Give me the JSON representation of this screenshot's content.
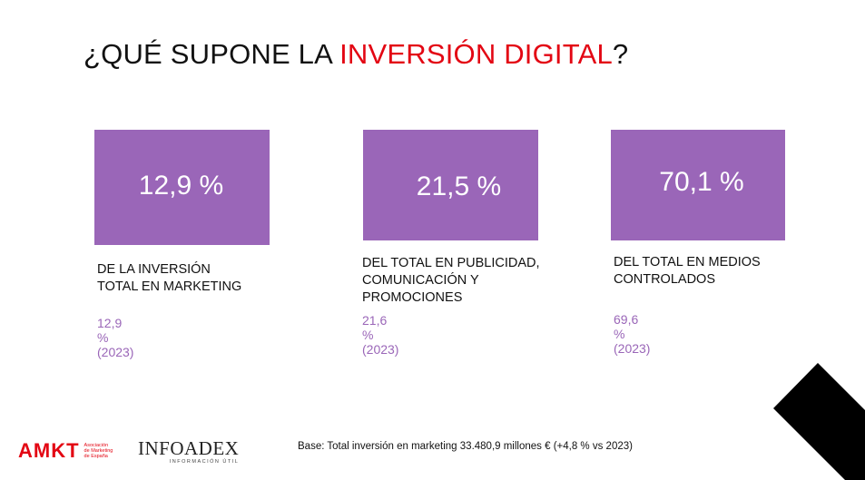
{
  "title": {
    "prefix": "¿QUÉ SUPONE LA ",
    "highlight": "INVERSIÓN DIGITAL",
    "suffix": "?"
  },
  "cards": [
    {
      "value": "12,9 %",
      "description": "DE LA INVERSIÓN\nTOTAL EN MARKETING",
      "previous": "12,9 % (2023)"
    },
    {
      "value": "21,5 %",
      "description": "DEL TOTAL EN PUBLICIDAD,\nCOMUNICACIÓN Y\nPROMOCIONES",
      "previous": "21,6 % (2023)"
    },
    {
      "value": "70,1 %",
      "description": "DEL TOTAL EN MEDIOS\nCONTROLADOS",
      "previous": "69,6 % (2023)"
    }
  ],
  "footer": {
    "amkt_logo": "AMKT",
    "amkt_subtitle": "Asociación\nde Marketing\nde España",
    "infoadex_logo": "INFOADEX",
    "infoadex_subtitle": "INFORMACIÓN ÚTIL",
    "note": "Base: Total inversión en marketing 33.480,9 millones € (+4,8 % vs 2023)"
  },
  "colors": {
    "accent": "#e30613",
    "box": "#9a66b8",
    "text": "#111111"
  }
}
